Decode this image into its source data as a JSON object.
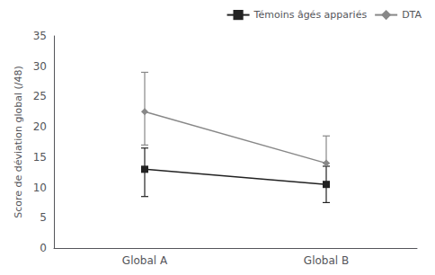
{
  "chart_data": {
    "type": "line",
    "categories": [
      "Global A",
      "Global B"
    ],
    "series": [
      {
        "name": "Témoins âgés appariés",
        "color": "#222222",
        "marker": "square",
        "values": [
          13.0,
          10.5
        ],
        "yerr_lower": [
          4.5,
          3.0
        ],
        "yerr_upper": [
          3.5,
          3.0
        ]
      },
      {
        "name": "DTA",
        "color": "#888888",
        "marker": "diamond",
        "values": [
          22.5,
          14.0
        ],
        "yerr_lower": [
          5.5,
          0.0
        ],
        "yerr_upper": [
          6.5,
          4.5
        ]
      }
    ],
    "ylabel": "Score de déviation global (/48)",
    "ylim": [
      0,
      35
    ],
    "yticks": [
      0,
      5,
      10,
      15,
      20,
      25,
      30,
      35
    ],
    "legend": "upper right",
    "grid": false
  }
}
